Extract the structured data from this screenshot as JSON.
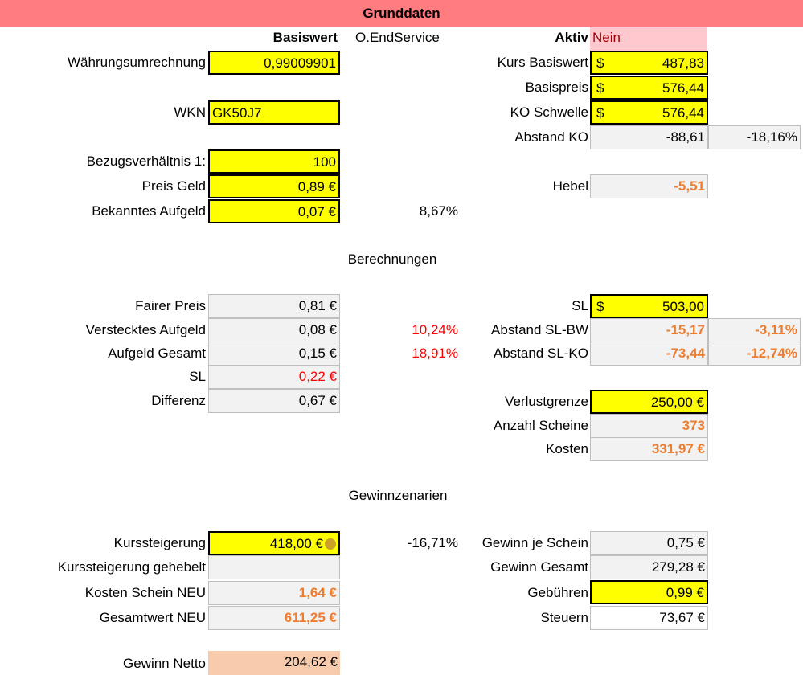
{
  "banner": {
    "title": "Grunddaten"
  },
  "headers": {
    "basiswert": "Basiswert",
    "oendservice": "O.EndService",
    "aktiv_label": "Aktiv",
    "aktiv_value": "Nein"
  },
  "left": {
    "waehrung_label": "Währungsumrechnung",
    "waehrung_value": "0,99009901",
    "wkn_label": "WKN",
    "wkn_value": "GK50J7",
    "bezug_label": "Bezugsverhältnis 1:",
    "bezug_value": "100",
    "preis_label": "Preis Geld",
    "preis_value": "0,89 €",
    "aufgeld_label": "Bekanntes Aufgeld",
    "aufgeld_value": "0,07 €",
    "aufgeld_pct": "8,67%"
  },
  "right": {
    "kurs_label": "Kurs Basiswert",
    "kurs_value": "487,83",
    "basispreis_label": "Basispreis",
    "basispreis_value": "576,44",
    "ko_label": "KO Schwelle",
    "ko_value": "576,44",
    "abstand_ko_label": "Abstand KO",
    "abstand_ko_value": "-88,61",
    "abstand_ko_pct": "-18,16%",
    "hebel_label": "Hebel",
    "hebel_value": "-5,51",
    "currency": "$"
  },
  "berechnungen": {
    "title": "Berechnungen",
    "fair_label": "Fairer Preis",
    "fair_value": "0,81 €",
    "versteckt_label": "Verstecktes Aufgeld",
    "versteckt_value": "0,08 €",
    "versteckt_pct": "10,24%",
    "gesamt_label": "Aufgeld Gesamt",
    "gesamt_value": "0,15 €",
    "gesamt_pct": "18,91%",
    "sl_label": "SL",
    "sl_value": "0,22 €",
    "diff_label": "Differenz",
    "diff_value": "0,67 €",
    "sl_r_label": "SL",
    "sl_r_value": "503,00",
    "abst_slbw_label": "Abstand SL-BW",
    "abst_slbw_value": "-15,17",
    "abst_slbw_pct": "-3,11%",
    "abst_slko_label": "Abstand SL-KO",
    "abst_slko_value": "-73,44",
    "abst_slko_pct": "-12,74%",
    "verlust_label": "Verlustgrenze",
    "verlust_value": "250,00 €",
    "anzahl_label": "Anzahl Scheine",
    "anzahl_value": "373",
    "kosten_label": "Kosten",
    "kosten_value": "331,97 €"
  },
  "gewinn": {
    "title": "Gewinnzenarien",
    "kurs_label": "Kurssteigerung",
    "kurs_value": "418,00 €",
    "kurs_pct": "-16,71%",
    "gehebelt_label": "Kurssteigerung gehebelt",
    "gehebelt_value": "",
    "kosten_neu_label": "Kosten Schein NEU",
    "kosten_neu_value": "1,64 €",
    "gesamtwert_label": "Gesamtwert NEU",
    "gesamtwert_value": "611,25 €",
    "netto_label": "Gewinn Netto",
    "netto_value": "204,62 €",
    "je_schein_label": "Gewinn je Schein",
    "je_schein_value": "0,75 €",
    "gesamt_label": "Gewinn Gesamt",
    "gesamt_value": "279,28 €",
    "gebuehren_label": "Gebühren",
    "gebuehren_value": "0,99 €",
    "steuern_label": "Steuern",
    "steuern_value": "73,67 €"
  }
}
